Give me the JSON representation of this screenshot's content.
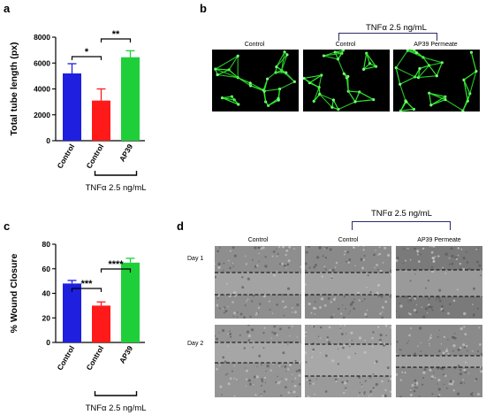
{
  "panels": {
    "a": {
      "letter": "a",
      "chart_data": {
        "type": "bar",
        "ylabel": "Total tube length (px)",
        "ylim": [
          0,
          8000
        ],
        "yticks": [
          "0",
          "2000",
          "4000",
          "6000",
          "8000"
        ],
        "categories": [
          "Control",
          "Control",
          "AP39"
        ],
        "values": [
          5200,
          3100,
          6450
        ],
        "errors": [
          750,
          900,
          500
        ],
        "colors": [
          "#1f1fe0",
          "#ff1a1a",
          "#1fcf3a"
        ],
        "significance": [
          {
            "label": "*",
            "from": 0,
            "to": 1
          },
          {
            "label": "**",
            "from": 1,
            "to": 2
          }
        ],
        "group_label": "TNFα 2.5 ng/mL"
      }
    },
    "b": {
      "letter": "b",
      "group_label": "TNFα 2.5 ng/mL",
      "images": [
        "Control",
        "Control",
        "AP39 Permeate"
      ]
    },
    "c": {
      "letter": "c",
      "chart_data": {
        "type": "bar",
        "ylabel": "% Wound Closure",
        "ylim": [
          0,
          80
        ],
        "yticks": [
          "0",
          "20",
          "40",
          "60",
          "80"
        ],
        "categories": [
          "Control",
          "Control",
          "AP39"
        ],
        "values": [
          48,
          30,
          65
        ],
        "errors": [
          2.5,
          3,
          3.5
        ],
        "colors": [
          "#1f1fe0",
          "#ff1a1a",
          "#1fcf3a"
        ],
        "significance": [
          {
            "label": "***",
            "from": 0,
            "to": 1
          },
          {
            "label": "****",
            "from": 1,
            "to": 2
          }
        ],
        "group_label": "TNFα 2.5 ng/mL"
      }
    },
    "d": {
      "letter": "d",
      "group_label": "TNFα 2.5 ng/mL",
      "columns": [
        "Control",
        "Control",
        "AP39 Permeate"
      ],
      "rows": [
        "Day 1",
        "Day 2"
      ]
    }
  }
}
